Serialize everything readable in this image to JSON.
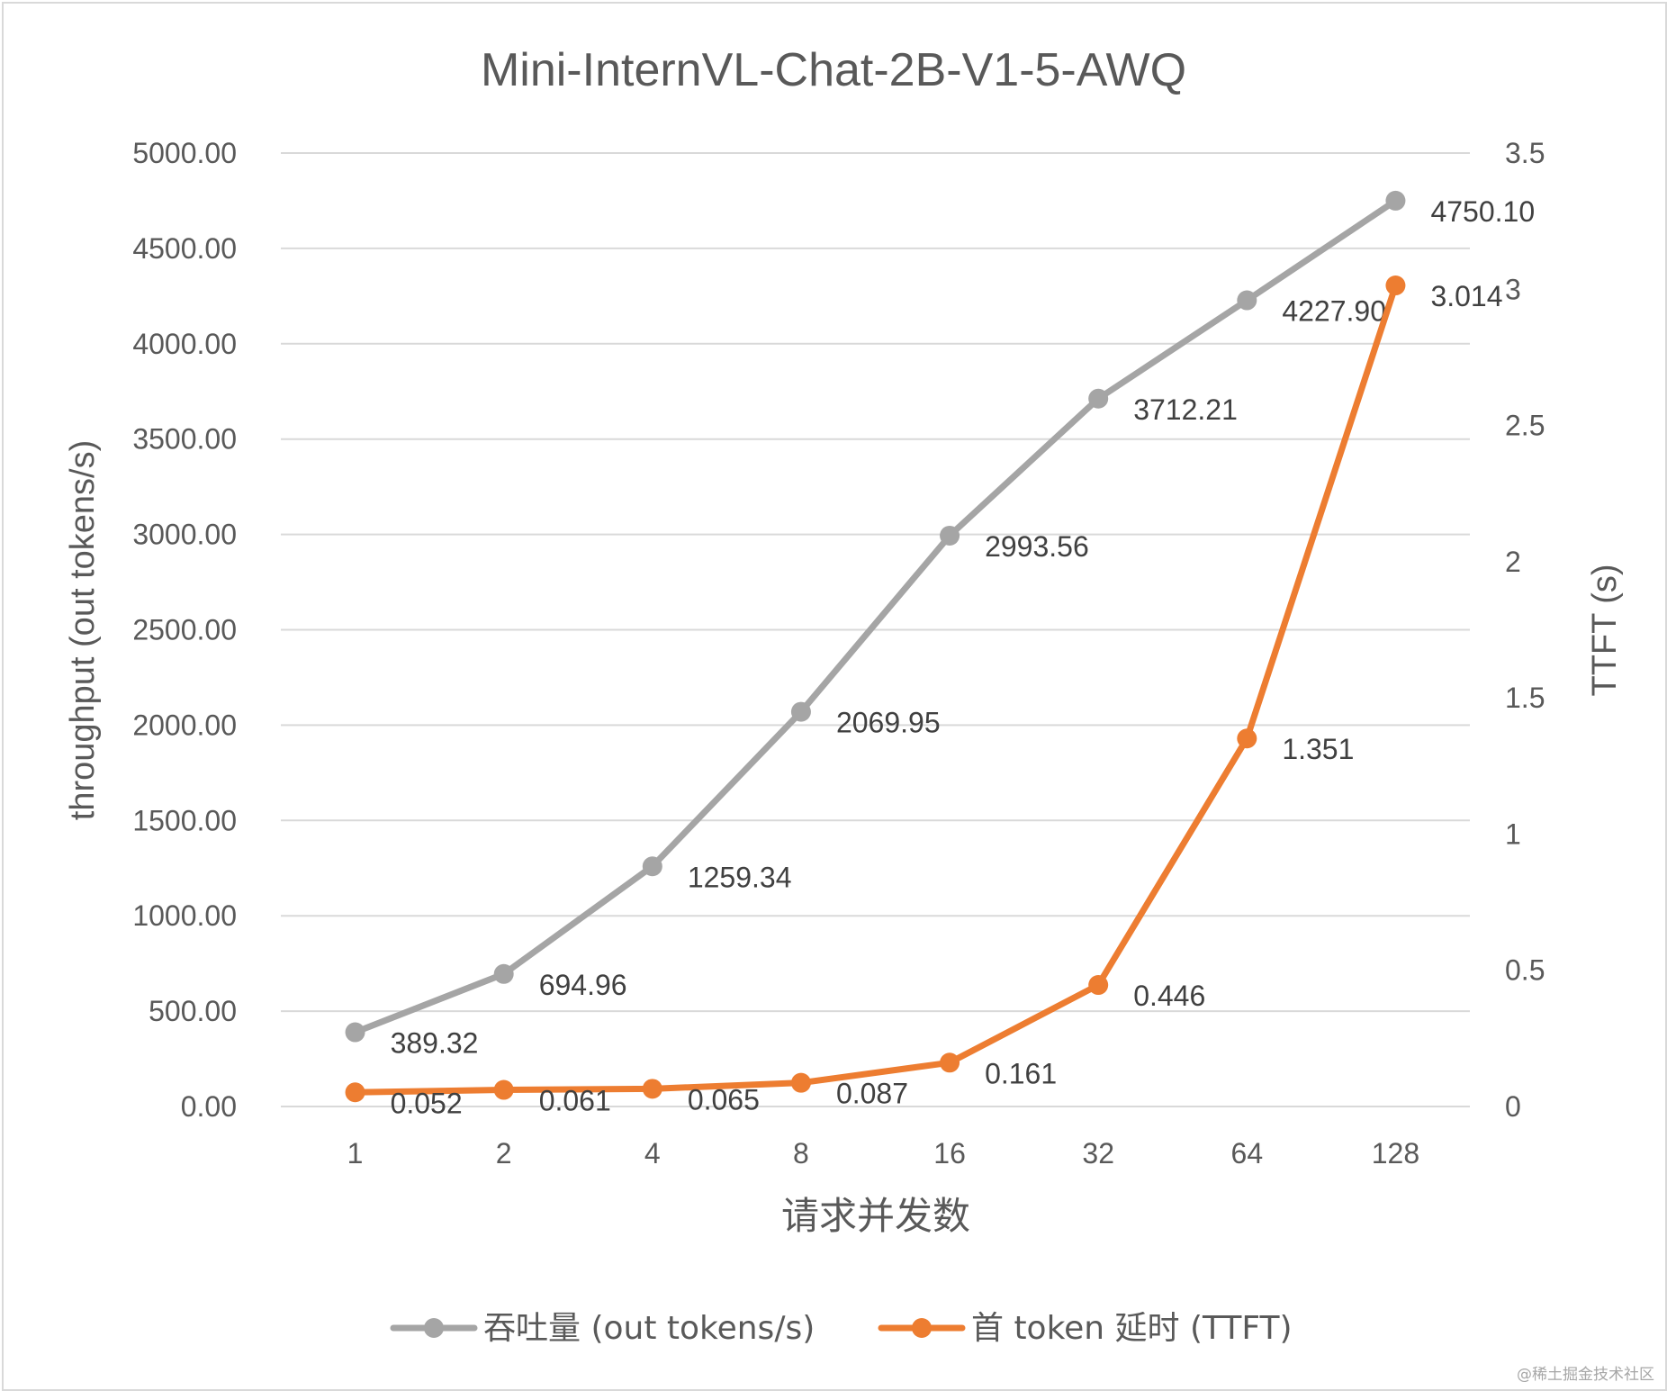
{
  "chart_data": {
    "type": "line",
    "title": "Mini-InternVL-Chat-2B-V1-5-AWQ",
    "xlabel": "请求并发数",
    "ylabel": "throughput (out tokens/s)",
    "y2label": "TTFT (s)",
    "categories": [
      "1",
      "2",
      "4",
      "8",
      "16",
      "32",
      "64",
      "128"
    ],
    "ylim": [
      0,
      5000
    ],
    "y2lim": [
      0,
      3.5
    ],
    "yticks": [
      "0.00",
      "500.00",
      "1000.00",
      "1500.00",
      "2000.00",
      "2500.00",
      "3000.00",
      "3500.00",
      "4000.00",
      "4500.00",
      "5000.00"
    ],
    "y2ticks": [
      "0",
      "0.5",
      "1",
      "1.5",
      "2",
      "2.5",
      "3",
      "3.5"
    ],
    "grid": true,
    "legend_position": "bottom",
    "series": [
      {
        "name": "吞吐量 (out tokens/s)",
        "axis": "left",
        "color": "#a5a5a5",
        "values": [
          389.32,
          694.96,
          1259.34,
          2069.95,
          2993.56,
          3712.21,
          4227.9,
          4750.1
        ],
        "labels": [
          "389.32",
          "694.96",
          "1259.34",
          "2069.95",
          "2993.56",
          "3712.21",
          "4227.90",
          "4750.10"
        ]
      },
      {
        "name": "首 token 延时 (TTFT)",
        "axis": "right",
        "color": "#ed7d31",
        "values": [
          0.052,
          0.061,
          0.065,
          0.087,
          0.161,
          0.446,
          1.351,
          3.014
        ],
        "labels": [
          "0.052",
          "0.061",
          "0.065",
          "0.087",
          "0.161",
          "0.446",
          "1.351",
          "3.014"
        ]
      }
    ]
  },
  "watermark": "@稀土掘金技术社区"
}
